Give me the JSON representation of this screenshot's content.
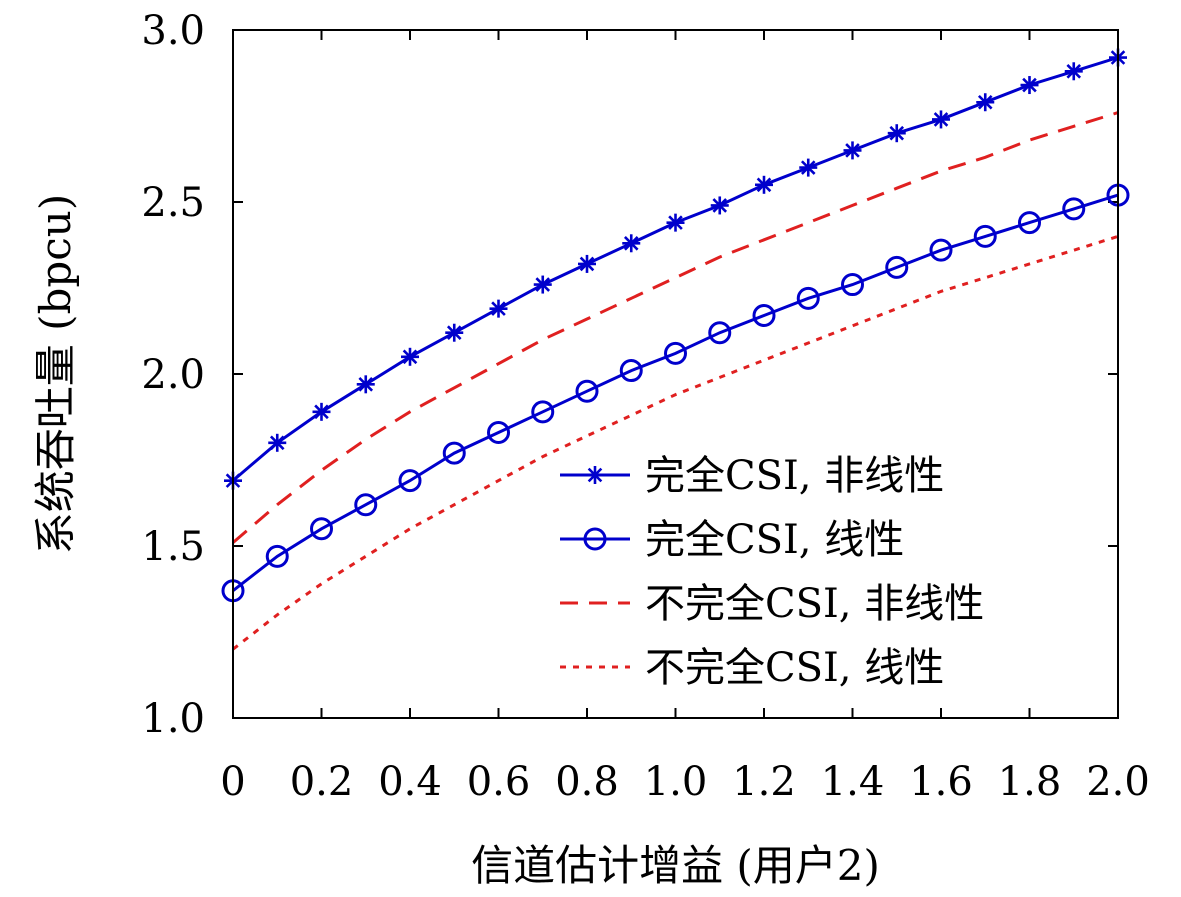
{
  "chart_data": {
    "type": "line",
    "xlabel": "信道估计增益 (用户2)",
    "ylabel": "系统吞吐量 (bpcu)",
    "xlim": [
      0,
      2.0
    ],
    "ylim": [
      1.0,
      3.0
    ],
    "x_ticks": [
      "0",
      "0.2",
      "0.4",
      "0.6",
      "0.8",
      "1.0",
      "1.2",
      "1.4",
      "1.6",
      "1.8",
      "2.0"
    ],
    "y_ticks": [
      "1.0",
      "1.5",
      "2.0",
      "2.5",
      "3.0"
    ],
    "grid": false,
    "legend_position": "bottom-right",
    "x": [
      0,
      0.1,
      0.2,
      0.3,
      0.4,
      0.5,
      0.6,
      0.7,
      0.8,
      0.9,
      1.0,
      1.1,
      1.2,
      1.3,
      1.4,
      1.5,
      1.6,
      1.7,
      1.8,
      1.9,
      2.0
    ],
    "series": [
      {
        "name": "完全CSI, 非线性",
        "color": "#0000cc",
        "line_style": "solid",
        "marker": "asterisk",
        "values": [
          1.69,
          1.8,
          1.89,
          1.97,
          2.05,
          2.12,
          2.19,
          2.26,
          2.32,
          2.38,
          2.44,
          2.49,
          2.55,
          2.6,
          2.65,
          2.7,
          2.74,
          2.79,
          2.84,
          2.88,
          2.92
        ]
      },
      {
        "name": "完全CSI, 线性",
        "color": "#0000cc",
        "line_style": "solid",
        "marker": "circle",
        "values": [
          1.37,
          1.47,
          1.55,
          1.62,
          1.69,
          1.77,
          1.83,
          1.89,
          1.95,
          2.01,
          2.06,
          2.12,
          2.17,
          2.22,
          2.26,
          2.31,
          2.36,
          2.4,
          2.44,
          2.48,
          2.52
        ]
      },
      {
        "name": "不完全CSI, 非线性",
        "color": "#e02020",
        "line_style": "dashed",
        "marker": "none",
        "values": [
          1.51,
          1.62,
          1.72,
          1.81,
          1.89,
          1.96,
          2.03,
          2.1,
          2.16,
          2.22,
          2.28,
          2.34,
          2.39,
          2.44,
          2.49,
          2.54,
          2.59,
          2.63,
          2.68,
          2.72,
          2.76
        ]
      },
      {
        "name": "不完全CSI, 线性",
        "color": "#e02020",
        "line_style": "dotted",
        "marker": "none",
        "values": [
          1.2,
          1.3,
          1.39,
          1.47,
          1.55,
          1.62,
          1.69,
          1.76,
          1.82,
          1.88,
          1.94,
          1.99,
          2.04,
          2.09,
          2.14,
          2.19,
          2.24,
          2.28,
          2.32,
          2.36,
          2.4
        ]
      }
    ]
  }
}
